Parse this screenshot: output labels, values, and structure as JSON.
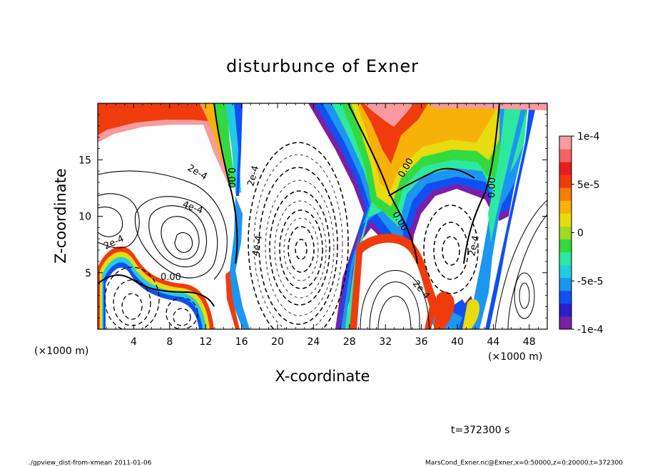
{
  "chart_data": {
    "type": "heatmap",
    "title": "disturbunce of Exner",
    "xlabel": "X-coordinate",
    "ylabel": "Z-coordinate",
    "x_unit_left": "(×1000 m)",
    "x_unit_right": "(×1000 m)",
    "xlim": [
      0,
      50
    ],
    "ylim": [
      0,
      20
    ],
    "xticks": [
      "4",
      "8",
      "12",
      "16",
      "20",
      "24",
      "28",
      "32",
      "36",
      "40",
      "44",
      "48"
    ],
    "xtick_values": [
      4,
      8,
      12,
      16,
      20,
      24,
      28,
      32,
      36,
      40,
      44,
      48
    ],
    "yticks": [
      "5",
      "10",
      "15"
    ],
    "ytick_values": [
      5,
      10,
      15
    ],
    "colorbar": {
      "range": [
        -0.0001,
        0.0001
      ],
      "ticks": [
        "1e-4",
        "5e-5",
        "0",
        "-5e-5",
        "-1e-4"
      ],
      "tick_values": [
        0.0001,
        5e-05,
        0,
        -5e-05,
        -0.0001
      ],
      "colors": [
        "#7a1fa8",
        "#2a1fc8",
        "#1050f0",
        "#1c96f0",
        "#22cce0",
        "#2ee8a0",
        "#34d840",
        "#9ed820",
        "#e6dc10",
        "#f7b20a",
        "#f67d0a",
        "#f03c0c",
        "#e81e1e",
        "#f26464",
        "#f89aa0"
      ]
    },
    "contour_labels": [
      "0.00",
      "0.00",
      "0.00",
      "0.00",
      "0.00",
      "2e-4",
      "4e-4",
      "2e-4",
      "4e-4",
      "2e-4",
      "2e-4",
      "2e-4",
      "8e-4",
      "4e-4"
    ],
    "field_samples": [
      {
        "x": 2,
        "z": 18.5,
        "v": 8e-05
      },
      {
        "x": 14.5,
        "z": 15,
        "v": 4e-05
      },
      {
        "x": 32,
        "z": 19,
        "v": 0.0001
      },
      {
        "x": 33.5,
        "z": 14.5,
        "v": 2e-05
      },
      {
        "x": 39.5,
        "z": 13.5,
        "v": -0.0001
      },
      {
        "x": 22,
        "z": 7.5,
        "v": -0.0004
      },
      {
        "x": 9,
        "z": 7.5,
        "v": 0.0004
      },
      {
        "x": 4,
        "z": 3,
        "v": -0.0004
      }
    ]
  },
  "footer": {
    "time": "t=372300 s",
    "left": "./gpview_dist-from-xmean   2011-01-06",
    "right": "MarsCond_Exner.nc@Exner,x=0:50000,z=0:20000,t=372300"
  }
}
